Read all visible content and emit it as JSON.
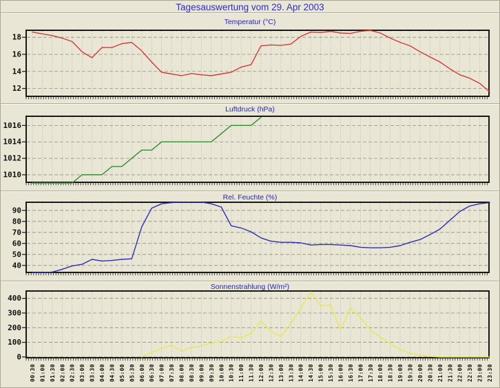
{
  "header": {
    "title": "Tagesauswertung vom 29. Apr 2003"
  },
  "colors": {
    "page_background": "#e9e6d5",
    "title_blue": "#2e2ec6",
    "plot_frame": "#181818",
    "grid_gray": "#909088",
    "temperature_line": "#d23a34",
    "pressure_line": "#2f8f2f",
    "humidity_line": "#2d2db4",
    "solar_line": "#e8e852"
  },
  "chart_data": [
    {
      "type": "line",
      "title": "Temperatur (°C)",
      "legend_position": "none",
      "grid": true,
      "categories": [
        "00:30",
        "01:00",
        "01:30",
        "02:00",
        "02:30",
        "03:00",
        "03:30",
        "04:00",
        "04:30",
        "05:00",
        "05:30",
        "06:00",
        "06:30",
        "07:00",
        "07:30",
        "08:00",
        "08:30",
        "09:00",
        "09:30",
        "10:00",
        "10:30",
        "11:00",
        "11:30",
        "12:00",
        "12:30",
        "13:00",
        "13:30",
        "14:00",
        "14:30",
        "15:00",
        "15:30",
        "16:00",
        "16:30",
        "17:00",
        "17:30",
        "18:00",
        "18:30",
        "19:00",
        "19:30",
        "20:00",
        "20:30",
        "21:00",
        "21:30",
        "22:00",
        "22:30",
        "23:00",
        "23:30"
      ],
      "values": [
        18.6,
        18.4,
        18.2,
        17.9,
        17.5,
        16.3,
        15.6,
        16.8,
        16.8,
        17.25,
        17.4,
        16.4,
        15.1,
        13.9,
        13.7,
        13.5,
        13.75,
        13.6,
        13.5,
        13.7,
        13.9,
        14.5,
        14.8,
        17.0,
        17.1,
        17.05,
        17.2,
        18.1,
        18.6,
        18.55,
        18.7,
        18.5,
        18.45,
        18.7,
        18.8,
        18.5,
        17.9,
        17.4,
        17.0,
        16.3,
        15.7,
        15.1,
        14.3,
        13.6,
        13.2,
        12.6,
        11.6
      ],
      "ylim": [
        11.0,
        18.9
      ],
      "yticks": [
        12,
        14,
        16,
        18
      ],
      "line_color": "#d23a34"
    },
    {
      "type": "line",
      "title": "Luftdruck (hPa)",
      "legend_position": "none",
      "grid": true,
      "note_visible_in_pixels": "series ends at 12:00",
      "categories": [
        "00:30",
        "01:00",
        "01:30",
        "02:00",
        "02:30",
        "03:00",
        "03:30",
        "04:00",
        "04:30",
        "05:00",
        "05:30",
        "06:00",
        "06:30",
        "07:00",
        "07:30",
        "08:00",
        "08:30",
        "09:00",
        "09:30",
        "10:00",
        "10:30",
        "11:00",
        "11:30",
        "12:00",
        "12:30",
        "13:00",
        "13:30",
        "14:00",
        "14:30",
        "15:00",
        "15:30",
        "16:00",
        "16:30",
        "17:00",
        "17:30",
        "18:00",
        "18:30",
        "19:00",
        "19:30",
        "20:00",
        "20:30",
        "21:00",
        "21:30",
        "22:00",
        "22:30",
        "23:00",
        "23:30"
      ],
      "values": [
        1009,
        1009,
        1009,
        1009,
        1009,
        1010,
        1010,
        1010,
        1011,
        1011,
        1012,
        1013,
        1013,
        1014,
        1014,
        1014,
        1014,
        1014,
        1014,
        1015,
        1016,
        1016,
        1016,
        1017,
        null,
        null,
        null,
        null,
        null,
        null,
        null,
        null,
        null,
        null,
        null,
        null,
        null,
        null,
        null,
        null,
        null,
        null,
        null,
        null,
        null,
        null,
        null
      ],
      "ylim": [
        1009.0,
        1017.2
      ],
      "yticks": [
        1010,
        1012,
        1014,
        1016
      ],
      "line_color": "#2f8f2f"
    },
    {
      "type": "line",
      "title": "Rel. Feuchte (%)",
      "legend_position": "none",
      "grid": true,
      "categories": [
        "00:30",
        "01:00",
        "01:30",
        "02:00",
        "02:30",
        "03:00",
        "03:30",
        "04:00",
        "04:30",
        "05:00",
        "05:30",
        "06:00",
        "06:30",
        "07:00",
        "07:30",
        "08:00",
        "08:30",
        "09:00",
        "09:30",
        "10:00",
        "10:30",
        "11:00",
        "11:30",
        "12:00",
        "12:30",
        "13:00",
        "13:30",
        "14:00",
        "14:30",
        "15:00",
        "15:30",
        "16:00",
        "16:30",
        "17:00",
        "17:30",
        "18:00",
        "18:30",
        "19:00",
        "19:30",
        "20:00",
        "20:30",
        "21:00",
        "21:30",
        "22:00",
        "22:30",
        "23:00",
        "23:30"
      ],
      "values": [
        33.5,
        33.5,
        34,
        36.5,
        39.5,
        41,
        45.5,
        44,
        44.5,
        45.5,
        46,
        75,
        92,
        96,
        97,
        97.5,
        97.5,
        97.5,
        96,
        93,
        76,
        74,
        70.5,
        65,
        62,
        61,
        61,
        60.5,
        58.5,
        59,
        59,
        58.5,
        58,
        56.5,
        56,
        56,
        56.5,
        58,
        61,
        63.5,
        68,
        73,
        81,
        89,
        94,
        96,
        97
      ],
      "ylim": [
        33,
        98
      ],
      "yticks": [
        40,
        50,
        60,
        70,
        80,
        90
      ],
      "line_color": "#2d2db4"
    },
    {
      "type": "line",
      "title": "Sonnenstrahlung (W/m²)",
      "legend_position": "none",
      "grid": true,
      "note_visible_in_pixels": "series starts at 06:00",
      "categories": [
        "00:30",
        "01:00",
        "01:30",
        "02:00",
        "02:30",
        "03:00",
        "03:30",
        "04:00",
        "04:30",
        "05:00",
        "05:30",
        "06:00",
        "06:30",
        "07:00",
        "07:30",
        "08:00",
        "08:30",
        "09:00",
        "09:30",
        "10:00",
        "10:30",
        "11:00",
        "11:30",
        "12:00",
        "12:30",
        "13:00",
        "13:30",
        "14:00",
        "14:30",
        "15:00",
        "15:30",
        "16:00",
        "16:30",
        "17:00",
        "17:30",
        "18:00",
        "18:30",
        "19:00",
        "19:30",
        "20:00",
        "20:30",
        "21:00",
        "21:30",
        "22:00",
        "22:30",
        "23:00",
        "23:30"
      ],
      "values": [
        null,
        null,
        null,
        null,
        null,
        null,
        null,
        null,
        null,
        null,
        null,
        0,
        30,
        60,
        80,
        40,
        65,
        75,
        95,
        105,
        140,
        130,
        160,
        245,
        175,
        140,
        230,
        330,
        445,
        350,
        355,
        185,
        335,
        270,
        185,
        135,
        90,
        50,
        25,
        12,
        4,
        0,
        0,
        0,
        0,
        0,
        0
      ],
      "ylim": [
        -10,
        455
      ],
      "yticks": [
        0,
        100,
        200,
        300,
        400
      ],
      "line_color": "#e8e852"
    }
  ]
}
